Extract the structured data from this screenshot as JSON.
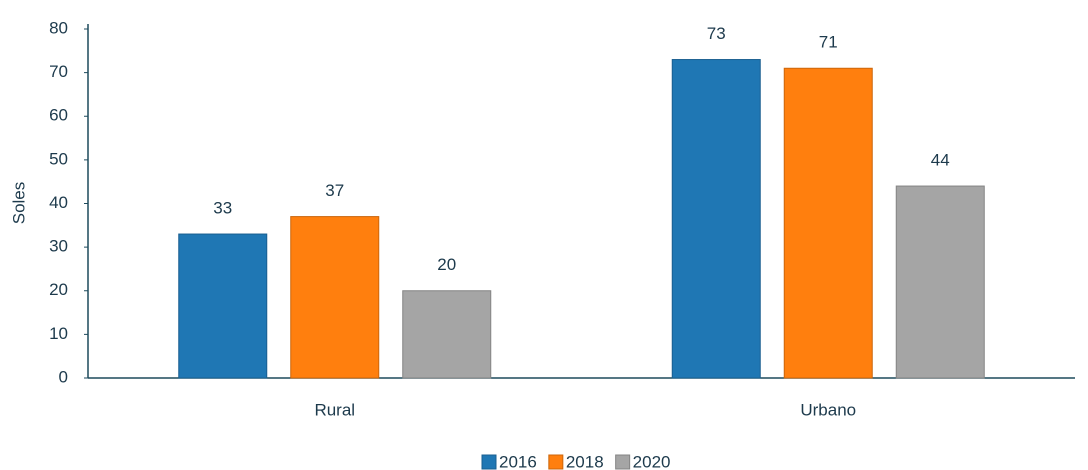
{
  "chart_data": {
    "type": "bar",
    "y_label": "Soles",
    "categories": [
      "Rural",
      "Urbano"
    ],
    "series": [
      {
        "name": "2016",
        "color": "#1f77b4",
        "values": [
          33,
          73
        ]
      },
      {
        "name": "2018",
        "color": "#ff7f0e",
        "values": [
          37,
          71
        ]
      },
      {
        "name": "2020",
        "color": "#a5a5a5",
        "values": [
          20,
          44
        ]
      }
    ],
    "ylim": [
      0,
      80
    ],
    "yticks": [
      0,
      10,
      20,
      30,
      40,
      50,
      60,
      70,
      80
    ],
    "grid": false,
    "legend": "bottom"
  }
}
